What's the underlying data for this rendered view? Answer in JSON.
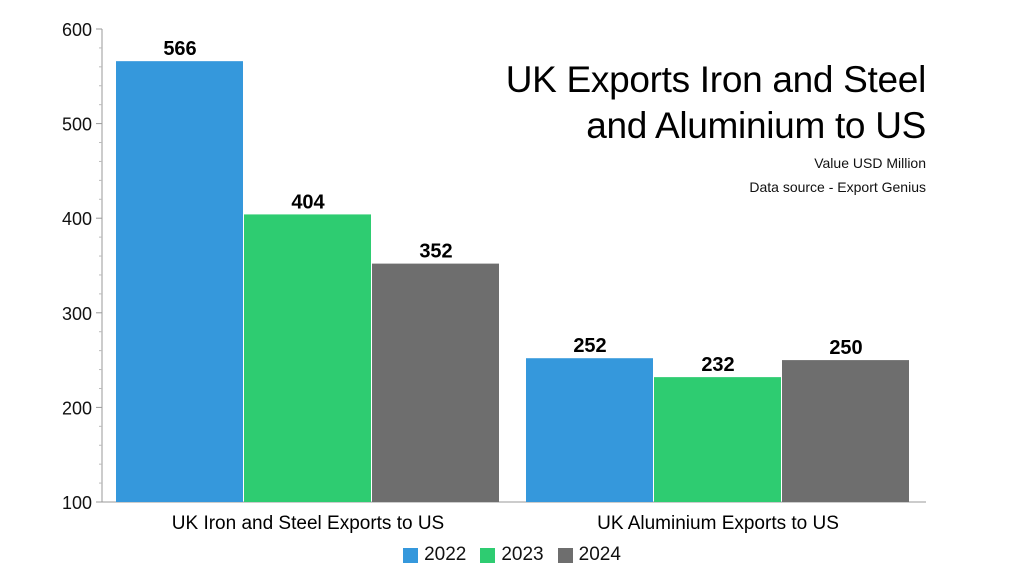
{
  "chart_data": {
    "type": "bar",
    "title_lines": [
      "UK Exports Iron and Steel",
      "and Aluminium to US"
    ],
    "subtitle_lines": [
      "Value USD Million",
      "Data source - Export Genius"
    ],
    "categories": [
      "UK Iron and Steel Exports to US",
      "UK Aluminium Exports to US"
    ],
    "series": [
      {
        "name": "2022",
        "color": "#3598DC",
        "values": [
          566,
          252
        ]
      },
      {
        "name": "2023",
        "color": "#2ECC71",
        "values": [
          404,
          232
        ]
      },
      {
        "name": "2024",
        "color": "#6E6E6E",
        "values": [
          352,
          250
        ]
      }
    ],
    "ylim": [
      100,
      600
    ],
    "yticks": [
      "100",
      "200",
      "300",
      "400",
      "500",
      "600"
    ],
    "grid": false,
    "legend_position": "bottom"
  }
}
